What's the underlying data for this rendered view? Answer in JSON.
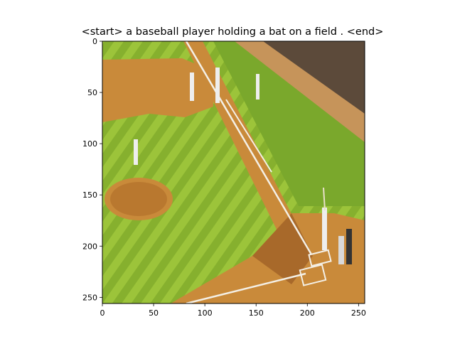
{
  "figure": {
    "title": "<start> a baseball player holding a bat on a field . <end>"
  },
  "chart_data": {
    "type": "image",
    "title": "<start> a baseball player holding a bat on a field . <end>",
    "xlabel": "",
    "ylabel": "",
    "xlim": [
      0,
      256
    ],
    "ylim": [
      256,
      0
    ],
    "x_ticks": [
      0,
      50,
      100,
      150,
      200,
      250
    ],
    "y_ticks": [
      0,
      50,
      100,
      150,
      200,
      250
    ],
    "grid": false,
    "legend": "none",
    "image_content": {
      "scene": "baseball field viewed from above with infield grass, dirt base paths, pitcher mound, batter at home plate, catcher, umpire, fielders and stands",
      "colors": {
        "grass_light": "#9cc43a",
        "grass_dark": "#7ea82a",
        "dirt": "#c98a3a",
        "dirt_dark": "#a8692a",
        "chalk": "#f4f0e6",
        "outfield": "#6f9f2a"
      }
    }
  }
}
